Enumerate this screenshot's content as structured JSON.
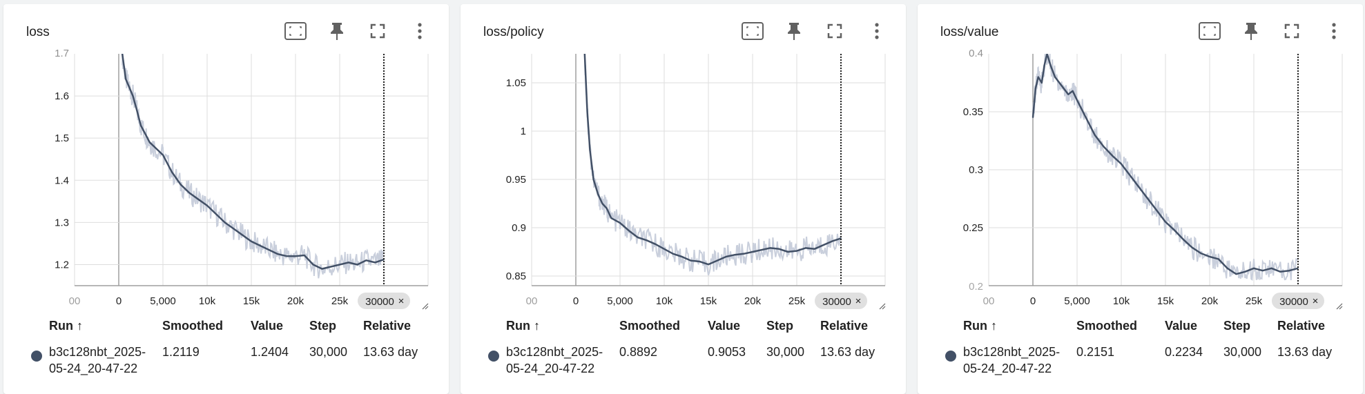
{
  "colors": {
    "line": "#425066",
    "raw": "#c9cfdc",
    "grid": "#dddddd"
  },
  "icons": [
    "fit-domain-icon",
    "pin-icon",
    "fullscreen-icon",
    "more-vert-icon"
  ],
  "x_ticks": [
    "00",
    "0",
    "5,000",
    "10k",
    "15k",
    "20k",
    "25k",
    "3"
  ],
  "cursor_label": "30000",
  "table_headers": {
    "run": "Run ↑",
    "smoothed": "Smoothed",
    "value": "Value",
    "step": "Step",
    "relative": "Relative"
  },
  "cards": [
    {
      "title": "loss",
      "y_ticks": [
        "1.2",
        "1.3",
        "1.4",
        "1.5",
        "1.6"
      ],
      "y_top_partial": "1.7",
      "y_bottom_partial": "",
      "row": {
        "run_l1": "b3c128nbt_2025-",
        "run_l2": "05-24_20-47-22",
        "smoothed": "1.2119",
        "value": "1.2404",
        "step": "30,000",
        "relative": "13.63 day"
      }
    },
    {
      "title": "loss/policy",
      "y_ticks": [
        "0.85",
        "0.9",
        "0.95",
        "1",
        "1.05"
      ],
      "y_top_partial": "",
      "y_bottom_partial": "",
      "row": {
        "run_l1": "b3c128nbt_2025-",
        "run_l2": "05-24_20-47-22",
        "smoothed": "0.8892",
        "value": "0.9053",
        "step": "30,000",
        "relative": "13.63 day"
      }
    },
    {
      "title": "loss/value",
      "y_ticks": [
        "0.25",
        "0.3",
        "0.35"
      ],
      "y_top_partial": "0.4",
      "y_bottom_partial": "0.2",
      "row": {
        "run_l1": "b3c128nbt_2025-",
        "run_l2": "05-24_20-47-22",
        "smoothed": "0.2151",
        "value": "0.2234",
        "step": "30,000",
        "relative": "13.63 day"
      }
    }
  ],
  "chart_data": [
    {
      "type": "line",
      "title": "loss",
      "xlabel": "",
      "ylabel": "",
      "xlim": [
        -5000,
        35000
      ],
      "ylim": [
        1.15,
        1.7
      ],
      "grid": true,
      "cursor_x": 30000,
      "series": [
        {
          "x": [
            400,
            800,
            1200,
            1600,
            2000,
            2500,
            3000,
            3500,
            4000,
            5000,
            6000,
            7000,
            8000,
            9000,
            10000,
            11000,
            12000,
            13000,
            14000,
            15000,
            16000,
            17000,
            18000,
            19000,
            20000,
            21000,
            22000,
            23000,
            24000,
            25000,
            26000,
            27000,
            28000,
            29000,
            30000
          ],
          "values": [
            1.7,
            1.64,
            1.62,
            1.6,
            1.57,
            1.53,
            1.51,
            1.49,
            1.48,
            1.46,
            1.42,
            1.39,
            1.37,
            1.355,
            1.34,
            1.32,
            1.3,
            1.285,
            1.27,
            1.255,
            1.245,
            1.235,
            1.225,
            1.22,
            1.22,
            1.222,
            1.2,
            1.19,
            1.195,
            1.2,
            1.205,
            1.2,
            1.21,
            1.205,
            1.212
          ]
        }
      ]
    },
    {
      "type": "line",
      "title": "loss/policy",
      "xlabel": "",
      "ylabel": "",
      "xlim": [
        -5000,
        35000
      ],
      "ylim": [
        0.84,
        1.08
      ],
      "grid": true,
      "cursor_x": 30000,
      "series": [
        {
          "x": [
            1000,
            1300,
            1600,
            2000,
            2500,
            3000,
            3500,
            4000,
            5000,
            6000,
            7000,
            8000,
            9000,
            10000,
            11000,
            12000,
            13000,
            14000,
            15000,
            16000,
            17000,
            18000,
            19000,
            20000,
            21000,
            22000,
            23000,
            24000,
            25000,
            26000,
            27000,
            28000,
            29000,
            30000
          ],
          "values": [
            1.08,
            1.02,
            0.98,
            0.95,
            0.935,
            0.925,
            0.92,
            0.91,
            0.905,
            0.897,
            0.89,
            0.887,
            0.883,
            0.878,
            0.873,
            0.87,
            0.866,
            0.865,
            0.862,
            0.866,
            0.87,
            0.872,
            0.873,
            0.875,
            0.877,
            0.879,
            0.878,
            0.875,
            0.876,
            0.879,
            0.878,
            0.882,
            0.886,
            0.889
          ]
        }
      ]
    },
    {
      "type": "line",
      "title": "loss/value",
      "xlabel": "",
      "ylabel": "",
      "xlim": [
        -5000,
        35000
      ],
      "ylim": [
        0.2,
        0.4
      ],
      "grid": true,
      "cursor_x": 30000,
      "series": [
        {
          "x": [
            0,
            300,
            600,
            1000,
            1300,
            1600,
            2000,
            2500,
            3000,
            3500,
            4000,
            4500,
            5000,
            6000,
            7000,
            8000,
            9000,
            10000,
            11000,
            12000,
            13000,
            14000,
            15000,
            16000,
            17000,
            18000,
            19000,
            20000,
            21000,
            22000,
            23000,
            24000,
            25000,
            26000,
            27000,
            28000,
            29000,
            30000
          ],
          "values": [
            0.345,
            0.37,
            0.38,
            0.375,
            0.39,
            0.4,
            0.39,
            0.38,
            0.375,
            0.37,
            0.365,
            0.368,
            0.36,
            0.345,
            0.33,
            0.32,
            0.312,
            0.305,
            0.295,
            0.285,
            0.275,
            0.265,
            0.255,
            0.248,
            0.24,
            0.233,
            0.228,
            0.225,
            0.223,
            0.215,
            0.21,
            0.212,
            0.215,
            0.213,
            0.215,
            0.212,
            0.213,
            0.215
          ]
        }
      ]
    }
  ]
}
